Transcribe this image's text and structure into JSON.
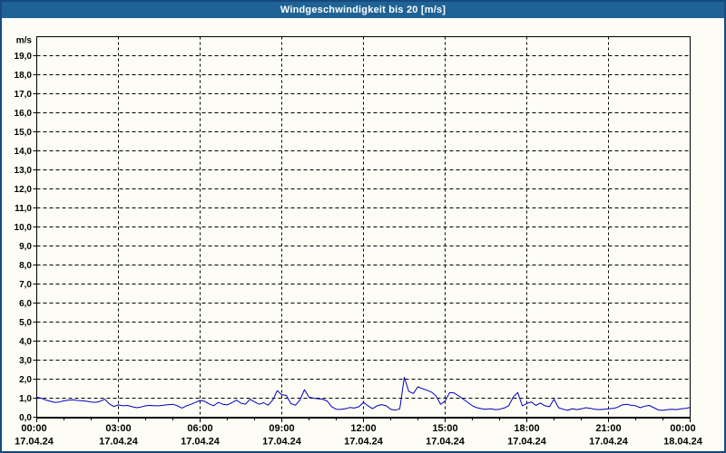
{
  "window": {
    "title": "Windgeschwindigkeit bis 20 [m/s]"
  },
  "colors": {
    "titlebar_bg": "#1f6396",
    "page_border": "#16497c",
    "background": "#fdfdf5",
    "grid": "#000000",
    "text": "#000000",
    "line": "#0000bf"
  },
  "chart_data": {
    "type": "line",
    "title": "Windgeschwindigkeit bis 20 [m/s]",
    "ylabel": "m/s",
    "xlabel": "",
    "ylim": [
      0,
      20
    ],
    "ytick_step": 1,
    "grid": "dashed",
    "legend": "none",
    "ytick_labels": [
      "0,0",
      "1,0",
      "2,0",
      "3,0",
      "4,0",
      "5,0",
      "6,0",
      "7,0",
      "8,0",
      "9,0",
      "10,0",
      "11,0",
      "12,0",
      "13,0",
      "14,0",
      "15,0",
      "16,0",
      "17,0",
      "18,0",
      "19,0"
    ],
    "x_range_min": [
      0,
      1440
    ],
    "x_minor_step_min": 60,
    "x_major_step_min": 180,
    "xticks": [
      {
        "t": 0,
        "time": "00:00",
        "date": "17.04.24"
      },
      {
        "t": 180,
        "time": "03:00",
        "date": "17.04.24"
      },
      {
        "t": 360,
        "time": "06:00",
        "date": "17.04.24"
      },
      {
        "t": 540,
        "time": "09:00",
        "date": "17.04.24"
      },
      {
        "t": 720,
        "time": "12:00",
        "date": "17.04.24"
      },
      {
        "t": 900,
        "time": "15:00",
        "date": "17.04.24"
      },
      {
        "t": 1080,
        "time": "18:00",
        "date": "17.04.24"
      },
      {
        "t": 1260,
        "time": "21:00",
        "date": "17.04.24"
      },
      {
        "t": 1440,
        "time": "00:00",
        "date": "18.04.24"
      }
    ],
    "series": [
      {
        "name": "Windgeschwindigkeit",
        "unit": "m/s",
        "color": "#0000bf",
        "x_start_min": 0,
        "x_step_min": 10,
        "values": [
          1.05,
          1.0,
          0.9,
          0.84,
          0.78,
          0.8,
          0.86,
          0.9,
          0.92,
          0.88,
          0.86,
          0.84,
          0.8,
          0.78,
          0.84,
          0.95,
          0.7,
          0.56,
          0.65,
          0.6,
          0.62,
          0.55,
          0.5,
          0.54,
          0.6,
          0.62,
          0.6,
          0.6,
          0.63,
          0.66,
          0.68,
          0.6,
          0.48,
          0.6,
          0.68,
          0.78,
          0.88,
          0.84,
          0.7,
          0.6,
          0.78,
          0.68,
          0.65,
          0.76,
          0.9,
          0.74,
          0.68,
          0.95,
          0.8,
          0.68,
          0.76,
          0.63,
          0.9,
          1.4,
          1.18,
          1.15,
          0.72,
          0.63,
          0.9,
          1.45,
          1.05,
          1.0,
          0.97,
          0.95,
          0.85,
          0.55,
          0.42,
          0.41,
          0.45,
          0.51,
          0.48,
          0.55,
          0.78,
          0.6,
          0.45,
          0.6,
          0.66,
          0.6,
          0.42,
          0.37,
          0.44,
          2.1,
          1.35,
          1.25,
          1.6,
          1.5,
          1.42,
          1.32,
          1.12,
          0.68,
          0.85,
          1.3,
          1.27,
          1.12,
          0.95,
          0.78,
          0.6,
          0.5,
          0.45,
          0.42,
          0.45,
          0.4,
          0.42,
          0.48,
          0.6,
          1.05,
          1.3,
          0.6,
          0.72,
          0.8,
          0.62,
          0.75,
          0.6,
          0.55,
          0.95,
          0.5,
          0.42,
          0.36,
          0.45,
          0.4,
          0.44,
          0.5,
          0.46,
          0.42,
          0.4,
          0.42,
          0.44,
          0.46,
          0.52,
          0.65,
          0.68,
          0.63,
          0.6,
          0.5,
          0.58,
          0.62,
          0.5,
          0.38,
          0.36,
          0.4,
          0.42,
          0.4,
          0.44,
          0.46,
          0.52
        ]
      }
    ]
  }
}
